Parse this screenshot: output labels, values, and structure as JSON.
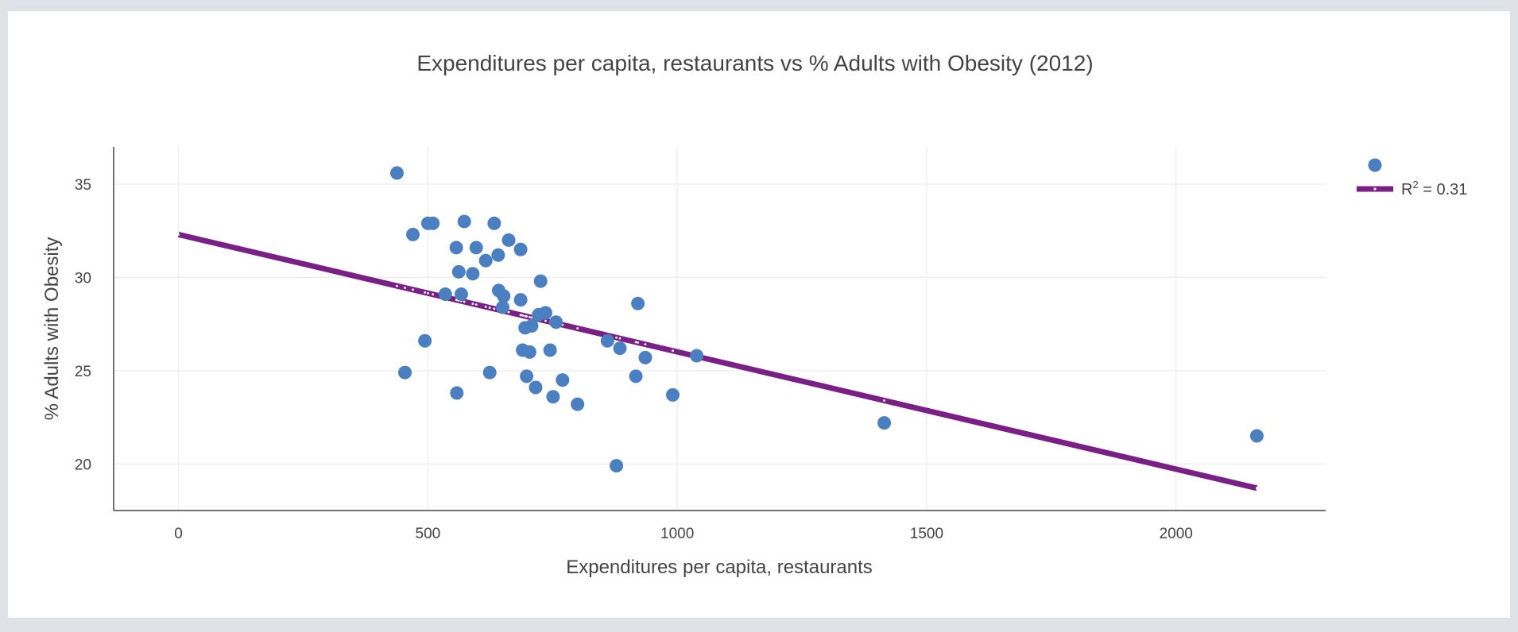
{
  "chart_data": {
    "type": "scatter",
    "title": "Expenditures per capita, restaurants vs % Adults with Obesity (2012)",
    "xlabel": "Expenditures per capita, restaurants",
    "ylabel": "% Adults with Obesity",
    "xlim": [
      -130,
      2300
    ],
    "ylim": [
      17.5,
      37
    ],
    "x_ticks": [
      0,
      500,
      1000,
      1500,
      2000
    ],
    "y_ticks": [
      20,
      25,
      30,
      35
    ],
    "grid": true,
    "legend_position": "top-right",
    "colors": {
      "points": "#4a7fc1",
      "trendline": "#7a1f86"
    },
    "series": [
      {
        "type": "scatter",
        "name": "",
        "points": [
          [
            438,
            35.6
          ],
          [
            470,
            32.3
          ],
          [
            500,
            32.9
          ],
          [
            510,
            32.9
          ],
          [
            573,
            33.0
          ],
          [
            633,
            32.9
          ],
          [
            557,
            31.6
          ],
          [
            597,
            31.6
          ],
          [
            662,
            32.0
          ],
          [
            686,
            31.5
          ],
          [
            641,
            31.2
          ],
          [
            616,
            30.9
          ],
          [
            562,
            30.3
          ],
          [
            590,
            30.2
          ],
          [
            726,
            29.8
          ],
          [
            535,
            29.1
          ],
          [
            567,
            29.1
          ],
          [
            642,
            29.3
          ],
          [
            652,
            29.0
          ],
          [
            686,
            28.8
          ],
          [
            650,
            28.4
          ],
          [
            736,
            28.1
          ],
          [
            722,
            28.0
          ],
          [
            921,
            28.6
          ],
          [
            757,
            27.6
          ],
          [
            695,
            27.3
          ],
          [
            708,
            27.4
          ],
          [
            494,
            26.6
          ],
          [
            860,
            26.6
          ],
          [
            885,
            26.2
          ],
          [
            690,
            26.1
          ],
          [
            745,
            26.1
          ],
          [
            704,
            26.0
          ],
          [
            936,
            25.7
          ],
          [
            1039,
            25.8
          ],
          [
            454,
            24.9
          ],
          [
            624,
            24.9
          ],
          [
            698,
            24.7
          ],
          [
            770,
            24.5
          ],
          [
            917,
            24.7
          ],
          [
            716,
            24.1
          ],
          [
            558,
            23.8
          ],
          [
            751,
            23.6
          ],
          [
            800,
            23.2
          ],
          [
            991,
            23.7
          ],
          [
            1415,
            22.2
          ],
          [
            2162,
            21.5
          ],
          [
            878,
            19.9
          ]
        ]
      },
      {
        "type": "line",
        "name": "R² = 0.31",
        "label_main": "R",
        "label_sup": "2",
        "label_rest": " = 0.31",
        "line_points": [
          [
            0,
            32.3
          ],
          [
            2162,
            18.7
          ]
        ]
      }
    ]
  }
}
